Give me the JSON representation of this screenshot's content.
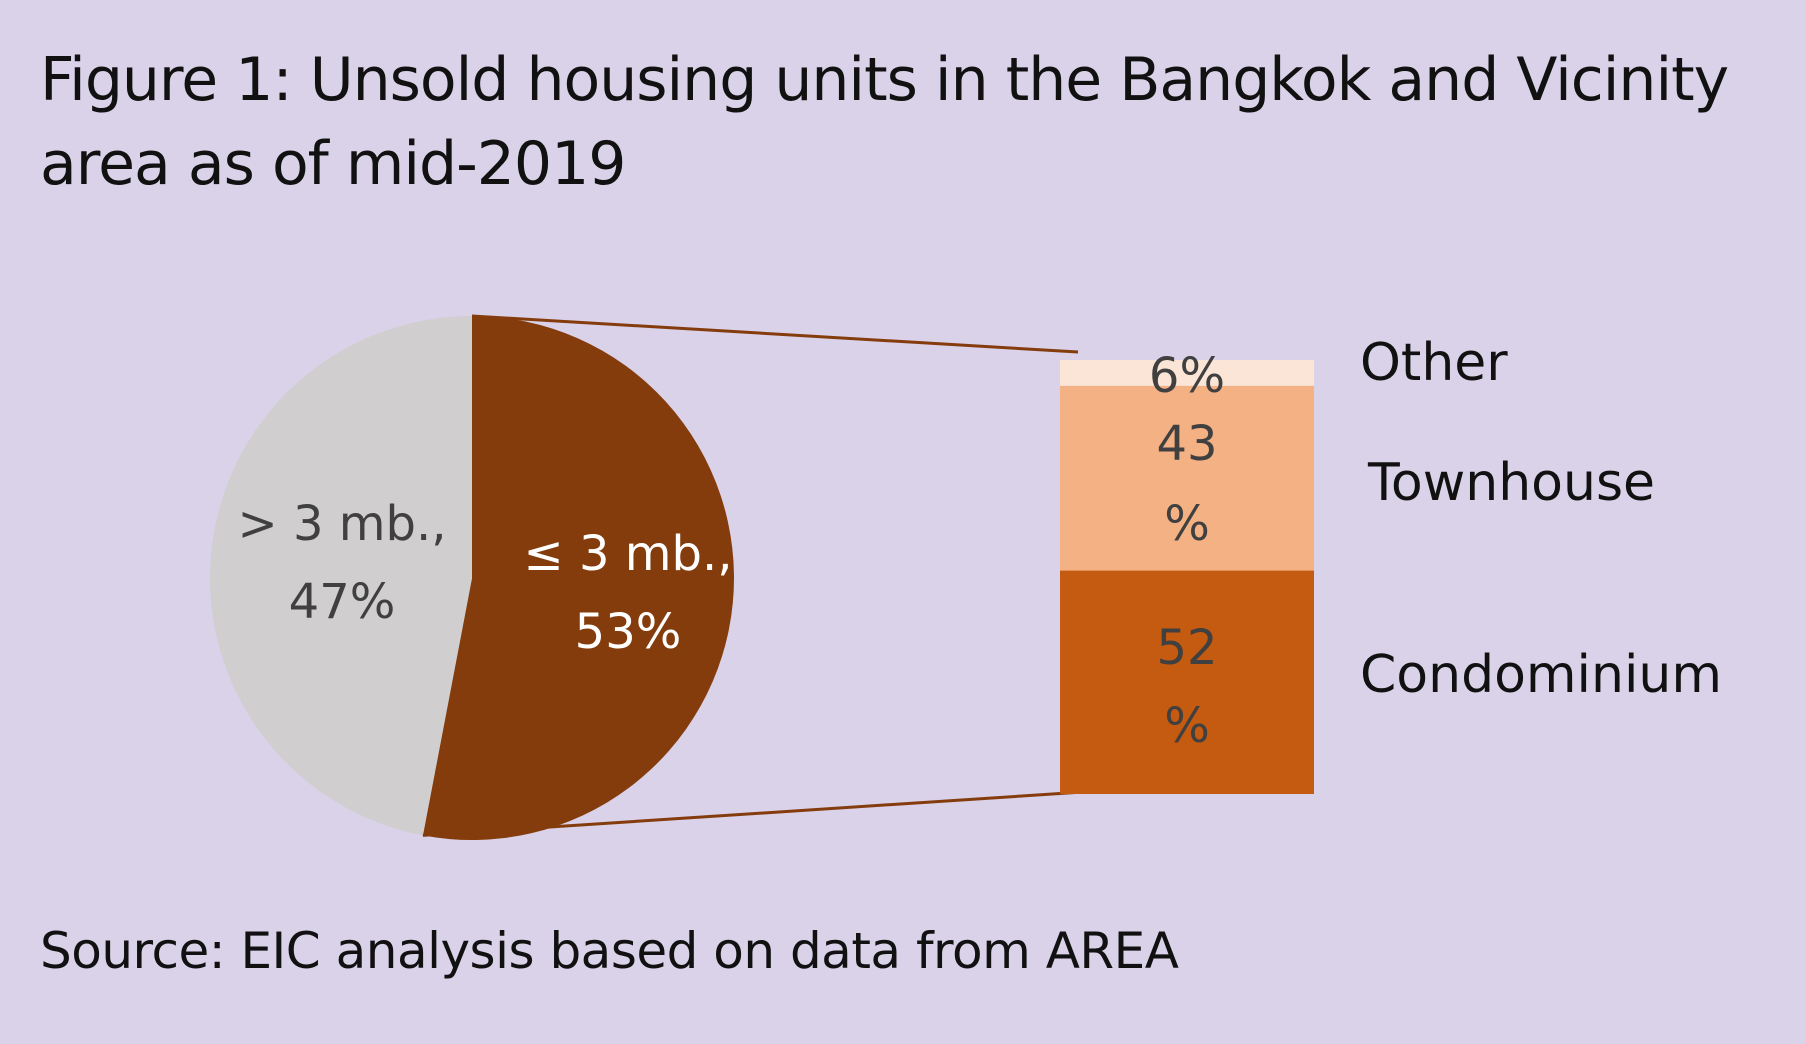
{
  "title_line1": "Figure 1: Unsold housing units in the Bangkok and Vicinity",
  "title_line2": "area as of mid-2019",
  "source": "Source: EIC analysis based on data from AREA",
  "colors": {
    "background": "#d9d2e9",
    "pie_high": "#d0cece",
    "pie_low": "#843c0c",
    "bar_condo": "#c55a11",
    "bar_townhouse": "#f4b183",
    "bar_other": "#fbe5d6",
    "connector": "#843c0c"
  },
  "chart_data": [
    {
      "type": "pie",
      "slices": [
        {
          "name": "pie-slice-low",
          "label_line1": "≤ 3 mb.,",
          "label_line2": "53%",
          "value": 53,
          "color_key": "pie_low",
          "text_color": "#ffffff"
        },
        {
          "name": "pie-slice-high",
          "label_line1": "> 3 mb.,",
          "label_line2": "47%",
          "value": 47,
          "color_key": "pie_high",
          "text_color": "#404040"
        }
      ]
    },
    {
      "type": "bar",
      "stacked": true,
      "of_slice": "≤ 3 mb.",
      "segments": [
        {
          "name": "bar-segment-condominium",
          "category": "Condominium",
          "value": 52,
          "label_line1": "52",
          "label_line2": "%",
          "color_key": "bar_condo"
        },
        {
          "name": "bar-segment-townhouse",
          "category": "Townhouse",
          "value": 43,
          "label_line1": "43",
          "label_line2": "%",
          "color_key": "bar_townhouse"
        },
        {
          "name": "bar-segment-other",
          "category": "Other",
          "value": 6,
          "label_line1": "6%",
          "label_line2": "",
          "color_key": "bar_other"
        }
      ]
    }
  ]
}
